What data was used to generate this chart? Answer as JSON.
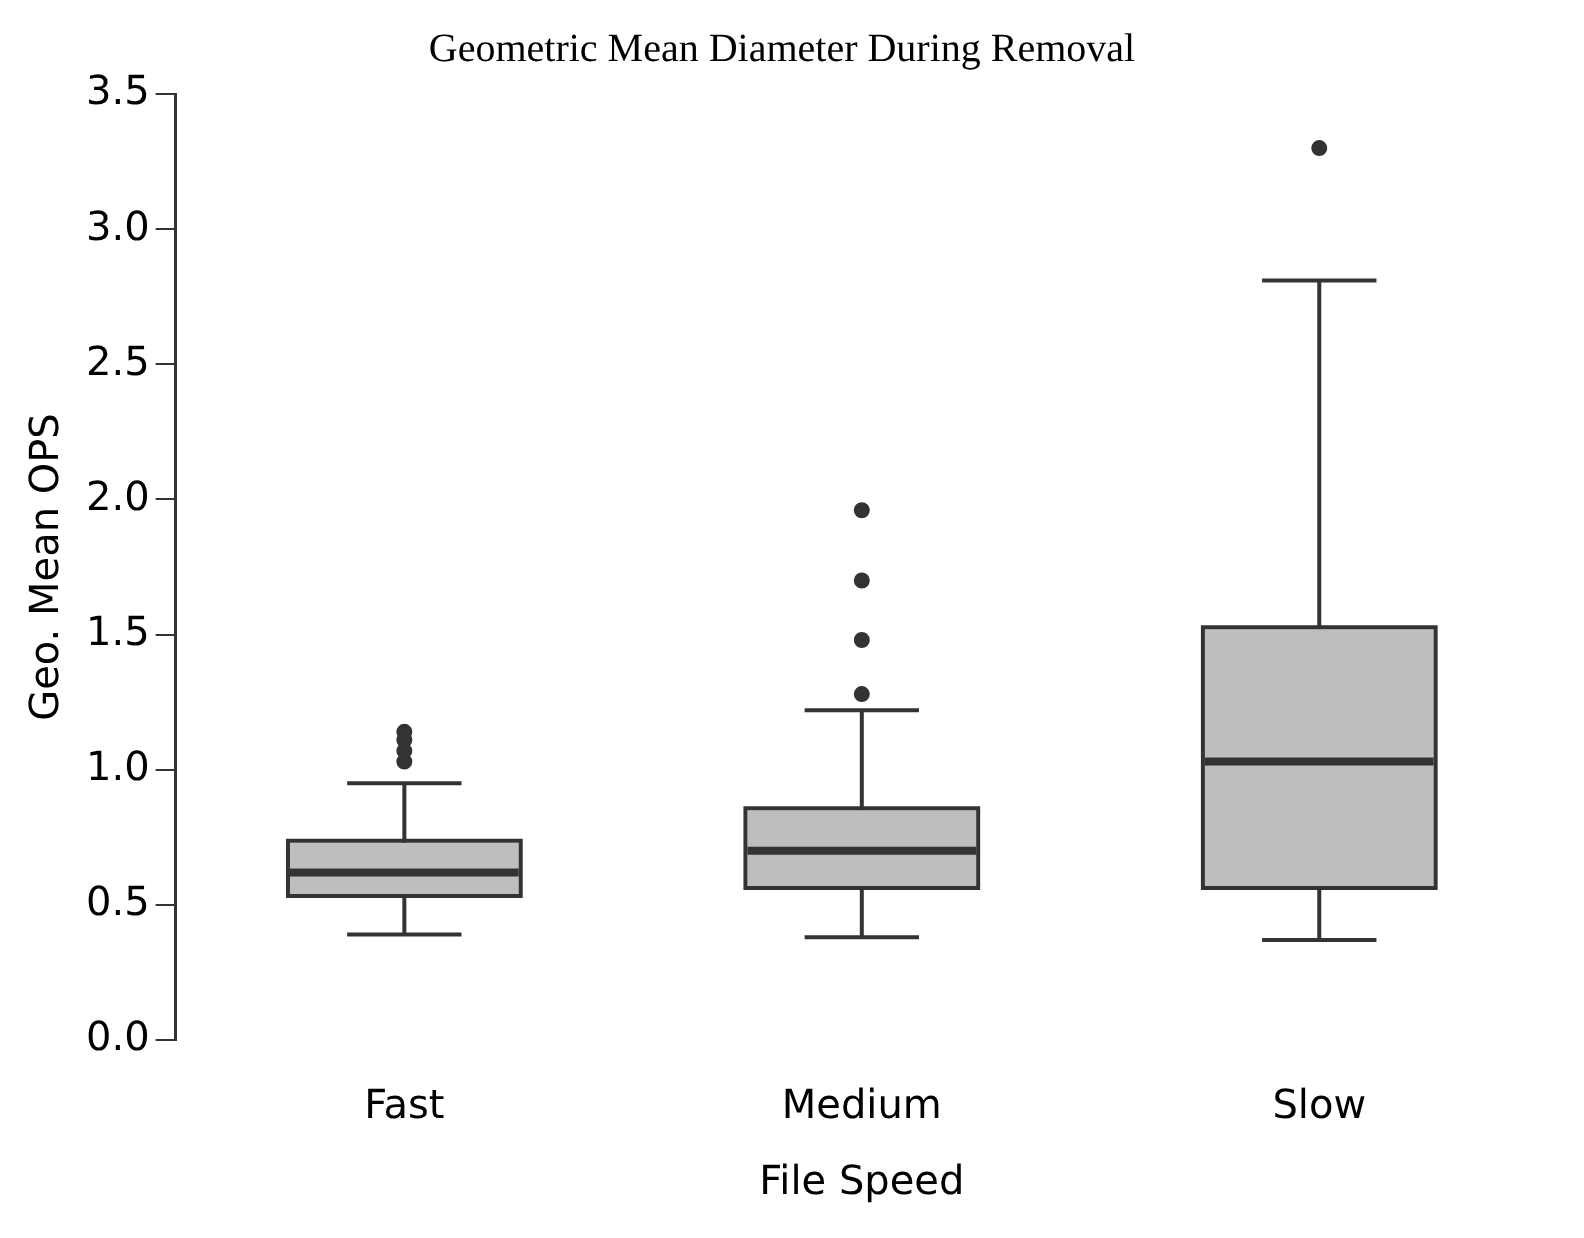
{
  "chart_data": {
    "type": "box",
    "title": "Geometric Mean Diameter During Removal",
    "xlabel": "File Speed",
    "ylabel": "Geo. Mean OPS",
    "categories": [
      "Fast",
      "Medium",
      "Slow"
    ],
    "color": "#bebebe",
    "ylim": [
      0,
      3.5
    ],
    "yticks": [
      {
        "value": 0,
        "label": "0.0"
      },
      {
        "value": 0.5,
        "label": "0.5"
      },
      {
        "value": 1,
        "label": "1.0"
      },
      {
        "value": 1.5,
        "label": "1.5"
      },
      {
        "value": 2,
        "label": "2.0"
      },
      {
        "value": 2.5,
        "label": "2.5"
      },
      {
        "value": 3,
        "label": "3.0"
      },
      {
        "value": 3.5,
        "label": "3.5"
      }
    ],
    "grid": false,
    "legend": false,
    "boxes": [
      {
        "low": 0.39,
        "q1": 0.54,
        "median": 0.62,
        "q3": 0.73,
        "high": 0.95,
        "outliers": [
          1.03,
          1.07,
          1.11,
          1.14
        ]
      },
      {
        "low": 0.38,
        "q1": 0.57,
        "median": 0.7,
        "q3": 0.85,
        "high": 1.22,
        "outliers": [
          1.28,
          1.48,
          1.7,
          1.96
        ]
      },
      {
        "low": 0.37,
        "q1": 0.57,
        "median": 1.03,
        "q3": 1.52,
        "high": 2.81,
        "outliers": [
          3.3
        ]
      }
    ]
  }
}
